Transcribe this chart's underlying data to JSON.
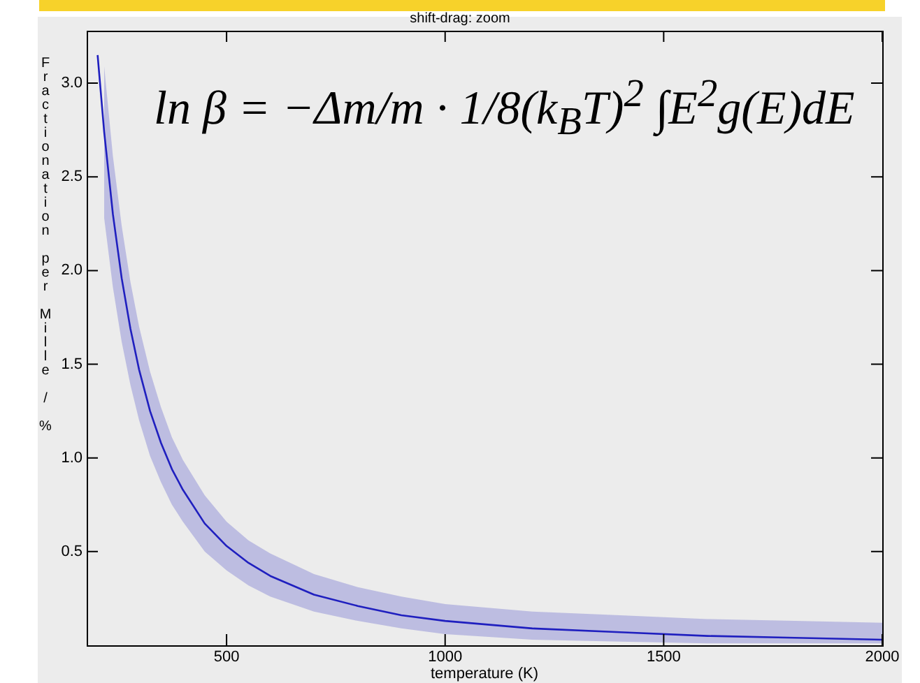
{
  "chart_data": {
    "type": "line",
    "xlabel": "temperature (K)",
    "ylabel": "Fractionation per Mille / %",
    "annotations": [
      "shift-drag: zoom",
      "ln β = −Δm/m · 1/8(k$_{B}$T)$^{2}$ ∫E$^{2}$g(E)dE"
    ],
    "x": [
      205,
      220,
      240,
      260,
      280,
      300,
      325,
      350,
      375,
      400,
      450,
      500,
      550,
      600,
      700,
      800,
      900,
      1000,
      1200,
      1400,
      1600,
      1800,
      2000
    ],
    "series": [
      {
        "color": "#1f1fbf",
        "values": [
          3.15,
          2.74,
          2.3,
          1.96,
          1.69,
          1.47,
          1.25,
          1.08,
          0.94,
          0.83,
          0.65,
          0.53,
          0.44,
          0.37,
          0.27,
          0.21,
          0.16,
          0.13,
          0.09,
          0.07,
          0.05,
          0.04,
          0.03
        ],
        "upper": [
          null,
          3.09,
          2.61,
          2.24,
          1.94,
          1.7,
          1.46,
          1.27,
          1.11,
          0.99,
          0.8,
          0.66,
          0.56,
          0.49,
          0.38,
          0.31,
          0.26,
          0.22,
          0.18,
          0.16,
          0.14,
          0.13,
          0.12
        ],
        "lower": [
          null,
          2.28,
          1.91,
          1.62,
          1.39,
          1.2,
          1.01,
          0.87,
          0.75,
          0.66,
          0.5,
          0.4,
          0.32,
          0.26,
          0.18,
          0.13,
          0.09,
          0.06,
          0.03,
          0.02,
          0.01,
          0.01,
          0.01
        ]
      }
    ],
    "xlim": [
      180,
      2000
    ],
    "xticks": [
      500,
      1000,
      1500,
      2000
    ],
    "ylim": [
      0,
      3.28
    ],
    "yticks": [
      0.5,
      {
        "value": 1,
        "label": "1.0"
      },
      1.5,
      {
        "value": 2,
        "label": "2.0"
      },
      2.5,
      {
        "value": 3,
        "label": "3.0"
      }
    ],
    "grid": false,
    "legend": false,
    "marker": "none",
    "line_style": "solid"
  }
}
